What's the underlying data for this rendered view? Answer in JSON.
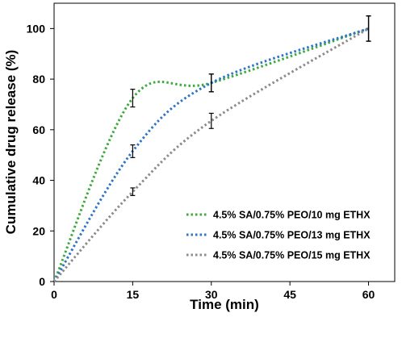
{
  "chart_data": {
    "type": "line",
    "xlabel": "Time (min)",
    "ylabel": "Cumulative drug release (%)",
    "xlim": [
      0,
      65
    ],
    "ylim": [
      0,
      110
    ],
    "xticks": [
      0,
      15,
      30,
      45,
      60
    ],
    "yticks": [
      0,
      20,
      40,
      60,
      80,
      100
    ],
    "grid": false,
    "legend_position": "bottom-right",
    "line_style": "dotted",
    "series": [
      {
        "name": "4.5% SA/0.75% PEO/10 mg ETHX",
        "color": "#3eaa3e",
        "x": [
          0,
          15,
          30,
          60
        ],
        "y": [
          0,
          72.5,
          78.5,
          100
        ],
        "error": [
          null,
          3.5,
          3.5,
          5
        ]
      },
      {
        "name": "4.5% SA/0.75% PEO/13 mg ETHX",
        "color": "#2e74c8",
        "x": [
          0,
          15,
          30,
          60
        ],
        "y": [
          0,
          51.5,
          78.5,
          100
        ],
        "error": [
          null,
          2.5,
          3.5,
          5
        ]
      },
      {
        "name": "4.5% SA/0.75% PEO/15 mg ETHX",
        "color": "#8c8c8c",
        "x": [
          0,
          15,
          30,
          60
        ],
        "y": [
          0,
          35.5,
          63.5,
          100
        ],
        "error": [
          null,
          1.5,
          3,
          5
        ]
      }
    ]
  }
}
